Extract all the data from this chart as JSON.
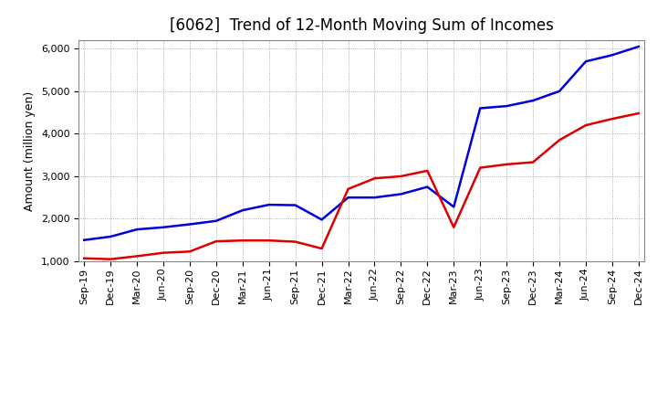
{
  "title": "[6062]  Trend of 12-Month Moving Sum of Incomes",
  "ylabel": "Amount (million yen)",
  "x_labels": [
    "Sep-19",
    "Dec-19",
    "Mar-20",
    "Jun-20",
    "Sep-20",
    "Dec-20",
    "Mar-21",
    "Jun-21",
    "Sep-21",
    "Dec-21",
    "Mar-22",
    "Jun-22",
    "Sep-22",
    "Dec-22",
    "Mar-23",
    "Jun-23",
    "Sep-23",
    "Dec-23",
    "Mar-24",
    "Jun-24",
    "Sep-24",
    "Dec-24"
  ],
  "ordinary_income": [
    1500,
    1580,
    1750,
    1800,
    1870,
    1950,
    2200,
    2330,
    2320,
    1980,
    2500,
    2500,
    2580,
    2750,
    2280,
    4600,
    4650,
    4780,
    5000,
    5700,
    5850,
    6050
  ],
  "net_income": [
    1070,
    1050,
    1120,
    1200,
    1230,
    1470,
    1490,
    1490,
    1460,
    1300,
    2700,
    2950,
    3000,
    3130,
    1800,
    3200,
    3280,
    3330,
    3850,
    4200,
    4350,
    4480
  ],
  "ordinary_color": "#0000dd",
  "net_color": "#dd0000",
  "ylim": [
    1000,
    6200
  ],
  "yticks": [
    1000,
    2000,
    3000,
    4000,
    5000,
    6000
  ],
  "background_color": "#ffffff",
  "grid_color": "#999999",
  "title_fontsize": 12,
  "axis_label_fontsize": 9,
  "tick_fontsize": 8,
  "legend_fontsize": 9
}
